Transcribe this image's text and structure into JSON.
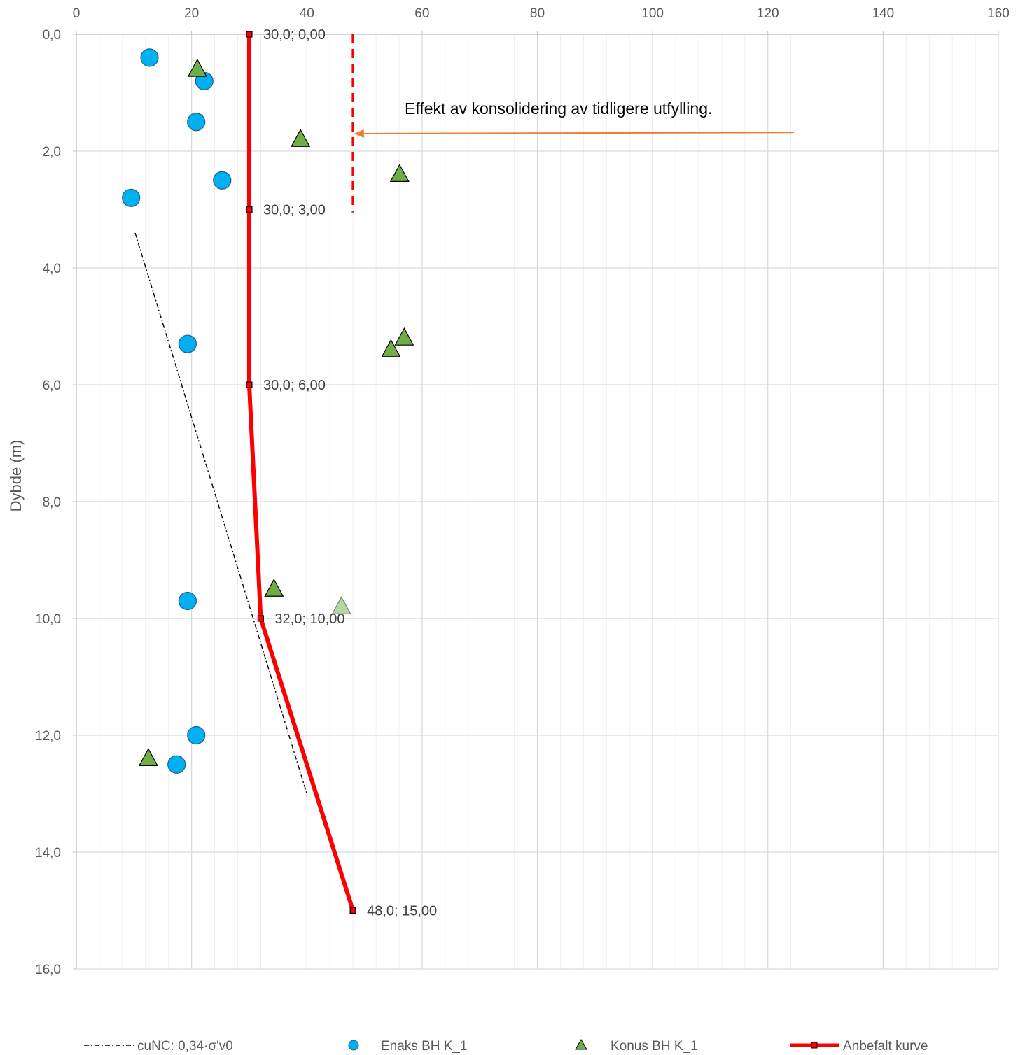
{
  "chart_data": {
    "type": "scatter",
    "ylabel": "Dybde (m)",
    "xlabel": "",
    "xlim": [
      0,
      160
    ],
    "ylim": [
      0,
      16
    ],
    "y_inverted": true,
    "x_axis_position": "top",
    "x_ticks": [
      "0",
      "20",
      "40",
      "60",
      "80",
      "100",
      "120",
      "140",
      "160"
    ],
    "y_ticks": [
      "0,0",
      "2,0",
      "4,0",
      "6,0",
      "8,0",
      "10,0",
      "12,0",
      "14,0",
      "16,0"
    ],
    "grid": true,
    "legend_position": "bottom",
    "series": [
      {
        "name": "cuNC: 0,34·σ'v0",
        "style": "dash-dot",
        "color": "#000000",
        "x": [
          10.2,
          40
        ],
        "y": [
          3.4,
          13.0
        ]
      },
      {
        "name": "Enaks BH K_1",
        "style": "circle",
        "color": "#00B0F0",
        "x": [
          12.7,
          22.2,
          20.8,
          25.3,
          9.5,
          19.3,
          19.3,
          20.8,
          17.4
        ],
        "y": [
          0.4,
          0.8,
          1.5,
          2.5,
          2.8,
          5.3,
          9.7,
          12.0,
          12.5
        ]
      },
      {
        "name": "Konus BH K_1",
        "style": "triangle",
        "color": "#70AD47",
        "x": [
          21.0,
          38.9,
          56.1,
          56.9,
          54.6,
          34.3,
          46.0,
          12.5
        ],
        "y": [
          0.6,
          1.8,
          2.4,
          5.2,
          5.4,
          9.5,
          9.8,
          12.4
        ]
      },
      {
        "name": "Anbefalt kurve",
        "style": "line-marker",
        "color": "#FF0000",
        "x": [
          30,
          30,
          30,
          32,
          48
        ],
        "y": [
          0,
          3,
          6,
          10,
          15
        ],
        "point_labels": [
          "30,0; 0,00",
          "30,0; 3,00",
          "30,0; 6,00",
          "32,0; 10,00",
          "48,0; 15,00"
        ]
      }
    ],
    "annotations": {
      "text": "Effekt av konsolidering av tidligere utfylling.",
      "dashed_line": {
        "x": 48,
        "y": [
          0,
          3.05
        ],
        "color": "#FF0000"
      },
      "arrow": {
        "from_x": 124.5,
        "from_y": 1.68,
        "to_x": 48.2,
        "to_y": 1.7,
        "color": "#ED7D31"
      }
    }
  }
}
